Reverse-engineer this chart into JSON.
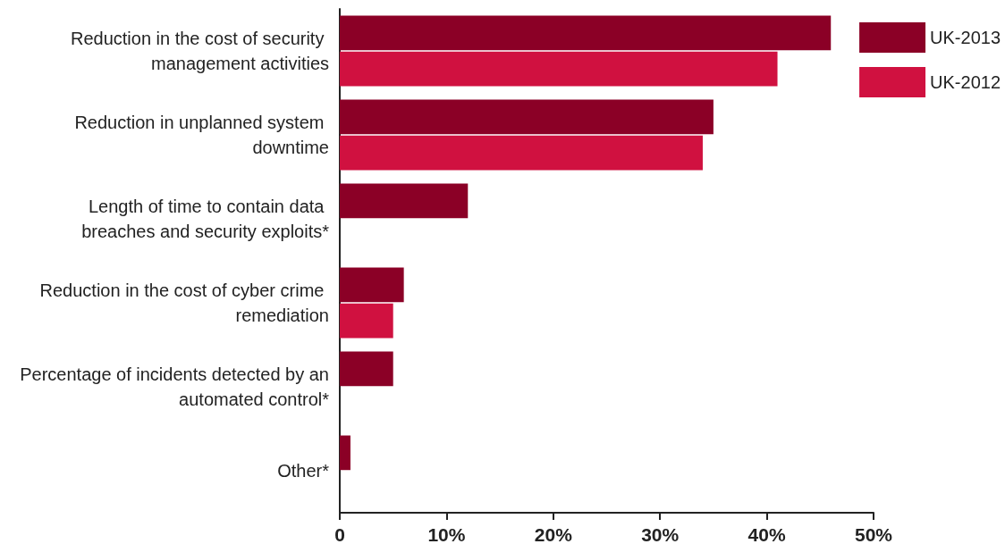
{
  "chart_data": {
    "type": "bar",
    "orientation": "horizontal",
    "categories": [
      "Reduction in the cost of security management activities",
      "Reduction in unplanned system downtime",
      "Length of time to contain data breaches and security exploits*",
      "Reduction in the cost of cyber crime remediation",
      "Percentage of incidents detected by an automated control*",
      "Other*"
    ],
    "series": [
      {
        "name": "UK-2013",
        "color": "#8b0026",
        "values": [
          46,
          35,
          12,
          6,
          5,
          1
        ]
      },
      {
        "name": "UK-2012",
        "color": "#d01140",
        "values": [
          41,
          34,
          null,
          5,
          null,
          null
        ]
      }
    ],
    "xlim": [
      0,
      50
    ],
    "xticks": [
      {
        "value": 0,
        "label": "0"
      },
      {
        "value": 10,
        "label": "10%"
      },
      {
        "value": 20,
        "label": "20%"
      },
      {
        "value": 30,
        "label": "30%"
      },
      {
        "value": 40,
        "label": "40%"
      },
      {
        "value": 50,
        "label": "50%"
      }
    ],
    "grid": false,
    "legend": "top right"
  }
}
